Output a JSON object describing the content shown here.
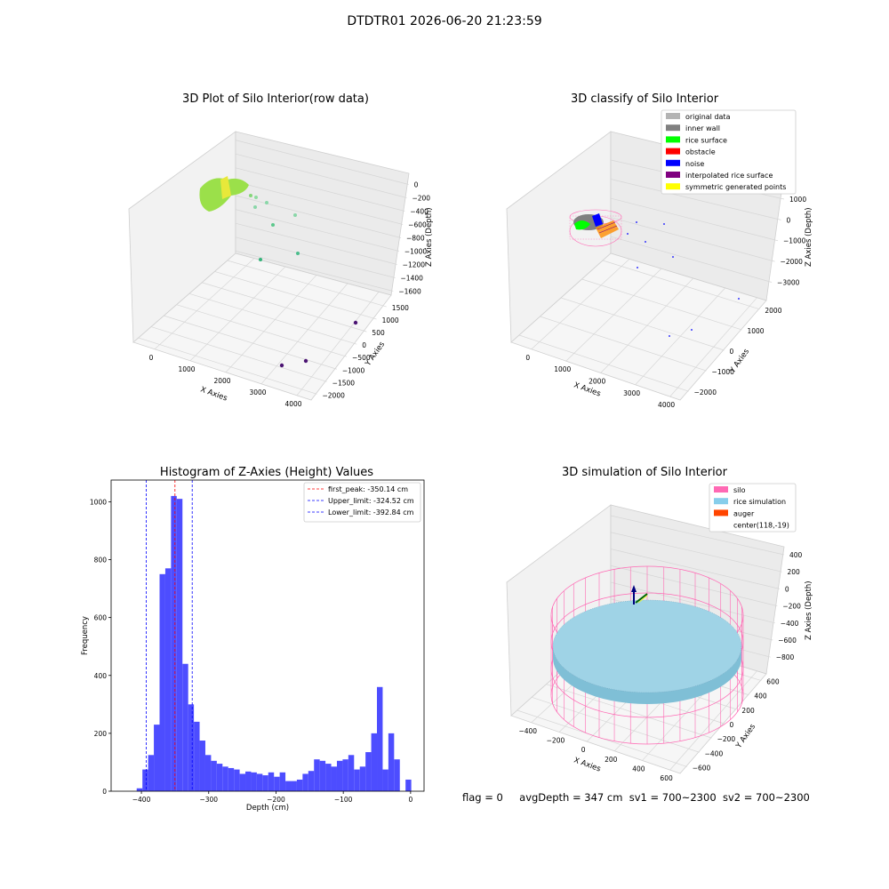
{
  "suptitle": "DTDTR01 2026-06-20 21:23:59",
  "footer": {
    "flag": "flag = 0",
    "avg_depth": "avgDepth = 347 cm",
    "sv1": "sv1 = 700~2300",
    "sv2": "sv2 = 700~2300"
  },
  "colors": {
    "original_data": "#b3b3b3",
    "inner_wall": "#808080",
    "rice_surface": "#00ff00",
    "obstacle": "#ff0000",
    "noise": "#0000ff",
    "interpolated": "#800080",
    "symmetric": "#ffff00",
    "silo": "#ff69b4",
    "rice_sim": "#87ceeb",
    "auger": "#ff4500",
    "hist_bar": "#4d4dff"
  },
  "chart_data": [
    {
      "type": "scatter",
      "subtype": "3d",
      "title": "3D Plot of Silo Interior(row data)",
      "xlabel": "X Axies",
      "ylabel": "Y Axies",
      "zlabel": "Z Axies (Depth)",
      "x_ticks": [
        "0",
        "1000",
        "2000",
        "3000",
        "4000"
      ],
      "y_ticks": [
        "−2000",
        "−1500",
        "−1000",
        "−500",
        "0",
        "500",
        "1000",
        "1500"
      ],
      "z_ticks": [
        "0",
        "−200",
        "−400",
        "−600",
        "−800",
        "−1000",
        "−1200",
        "−1400",
        "−1600"
      ]
    },
    {
      "type": "scatter",
      "subtype": "3d",
      "title": "3D classify of Silo Interior",
      "xlabel": "X Axies",
      "ylabel": "Y Axies",
      "zlabel": "Z Axies (Depth)",
      "x_ticks": [
        "0",
        "1000",
        "2000",
        "3000",
        "4000"
      ],
      "y_ticks": [
        "−2000",
        "−1000",
        "0",
        "1000",
        "2000"
      ],
      "z_ticks": [
        "1000",
        "0",
        "−1000",
        "−2000",
        "−3000"
      ],
      "legend": [
        "original data",
        "inner wall",
        "rice surface",
        "obstacle",
        "noise",
        "interpolated rice surface",
        "symmetric generated points"
      ],
      "legend_position": "top-right"
    },
    {
      "type": "bar",
      "subtype": "histogram",
      "title": "Histogram of Z-Axies (Height) Values",
      "xlabel": "Depth (cm)",
      "ylabel": "Frequency",
      "xlim": [
        -445,
        20
      ],
      "ylim": [
        0,
        1075
      ],
      "x_ticks": [
        -400,
        -300,
        -200,
        -100,
        0
      ],
      "y_ticks": [
        0,
        200,
        400,
        600,
        800,
        1000
      ],
      "bin_width": 8.5,
      "bin_start": -407,
      "values": [
        10,
        75,
        125,
        230,
        750,
        770,
        1020,
        1010,
        440,
        300,
        240,
        175,
        125,
        105,
        95,
        85,
        80,
        75,
        60,
        68,
        65,
        60,
        55,
        65,
        50,
        65,
        35,
        35,
        40,
        60,
        70,
        110,
        105,
        95,
        85,
        105,
        110,
        125,
        75,
        85,
        135,
        200,
        360,
        75,
        200,
        110,
        0,
        40
      ],
      "lines": [
        {
          "label": "first_peak: -350.14 cm",
          "x": -350.14,
          "color": "#ff0000"
        },
        {
          "label": "Upper_limit: -324.52 cm",
          "x": -324.52,
          "color": "#0000ff"
        },
        {
          "label": "Lower_limit: -392.84 cm",
          "x": -392.84,
          "color": "#0000ff"
        }
      ],
      "legend_position": "top-right"
    },
    {
      "type": "scatter",
      "subtype": "3d",
      "title": "3D simulation of Silo Interior",
      "xlabel": "X Axies",
      "ylabel": "Y Axies",
      "zlabel": "Z Axies (Depth)",
      "x_ticks": [
        "−400",
        "−200",
        "0",
        "200",
        "400",
        "600"
      ],
      "y_ticks": [
        "−600",
        "−400",
        "−200",
        "0",
        "200",
        "400",
        "600"
      ],
      "z_ticks": [
        "400",
        "200",
        "0",
        "−200",
        "−400",
        "−600",
        "−800"
      ],
      "legend": [
        "silo",
        "rice simulation",
        "auger",
        "center(118,-19)"
      ],
      "legend_position": "top-right"
    }
  ]
}
